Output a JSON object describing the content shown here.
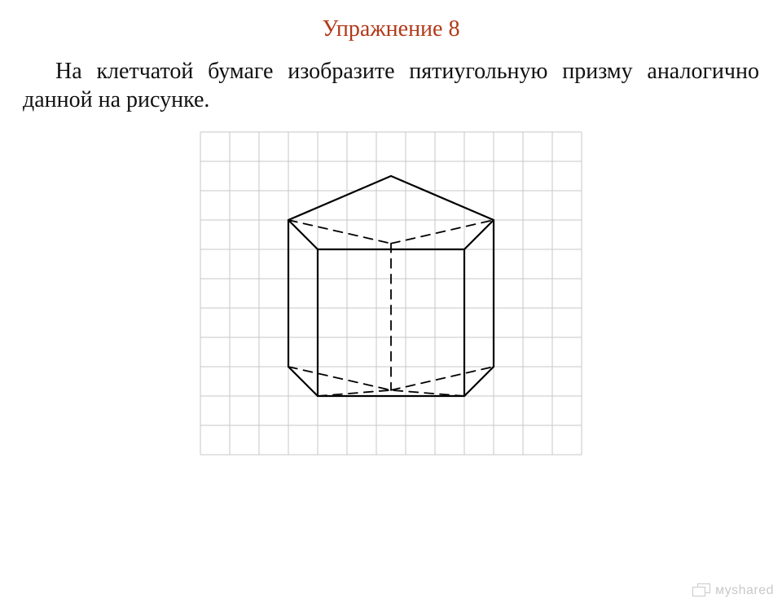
{
  "title": {
    "text": "Упражнение 8",
    "color": "#b13a1a",
    "fontsize": 28
  },
  "body": {
    "text": "На клетчатой бумаге изобразите пятиугольную призму аналогично данной на рисунке.",
    "color": "#111111",
    "fontsize": 28
  },
  "watermark": {
    "text": "мyshared",
    "color": "#c9c9c9"
  },
  "figure": {
    "type": "diagram",
    "grid": {
      "cols": 13,
      "rows": 11,
      "cell": 36,
      "margin": 4,
      "line_color": "#c7c7c7",
      "line_width": 1,
      "background": "#ffffff"
    },
    "stroke": {
      "color": "#000000",
      "solid_width": 2.2,
      "dashed_width": 1.8,
      "dash": "11 8"
    },
    "top_pentagon_solid": [
      [
        3.0,
        3.0
      ],
      [
        6.5,
        1.5
      ],
      [
        10.0,
        3.0
      ],
      [
        9.0,
        4.0
      ],
      [
        4.0,
        4.0
      ],
      [
        3.0,
        3.0
      ]
    ],
    "top_pentagon_dashed": [
      [
        [
          3.0,
          3.0
        ],
        [
          6.5,
          3.8
        ]
      ],
      [
        [
          6.5,
          3.8
        ],
        [
          10.0,
          3.0
        ]
      ]
    ],
    "bottom_pentagon_solid": [
      [
        [
          3.0,
          8.0
        ],
        [
          4.0,
          9.0
        ]
      ],
      [
        [
          4.0,
          9.0
        ],
        [
          9.0,
          9.0
        ]
      ],
      [
        [
          9.0,
          9.0
        ],
        [
          10.0,
          8.0
        ]
      ]
    ],
    "bottom_pentagon_dashed": [
      [
        [
          3.0,
          8.0
        ],
        [
          6.5,
          8.8
        ]
      ],
      [
        [
          6.5,
          8.8
        ],
        [
          10.0,
          8.0
        ]
      ],
      [
        [
          4.0,
          9.0
        ],
        [
          6.5,
          8.8
        ]
      ],
      [
        [
          9.0,
          9.0
        ],
        [
          6.5,
          8.8
        ]
      ]
    ],
    "vertical_solid": [
      [
        [
          3.0,
          3.0
        ],
        [
          3.0,
          8.0
        ]
      ],
      [
        [
          4.0,
          4.0
        ],
        [
          4.0,
          9.0
        ]
      ],
      [
        [
          9.0,
          4.0
        ],
        [
          9.0,
          9.0
        ]
      ],
      [
        [
          10.0,
          3.0
        ],
        [
          10.0,
          8.0
        ]
      ]
    ],
    "vertical_dashed": [
      [
        [
          6.5,
          3.8
        ],
        [
          6.5,
          8.8
        ]
      ]
    ]
  }
}
